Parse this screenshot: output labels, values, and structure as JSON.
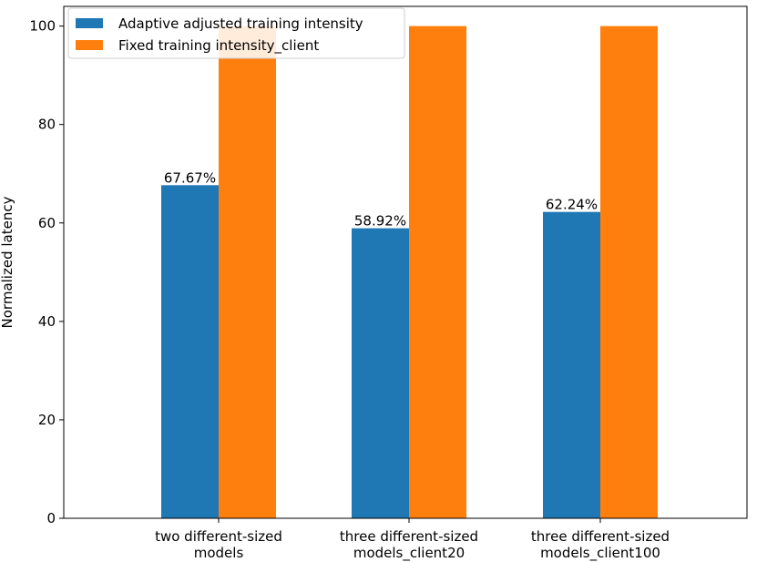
{
  "chart_data": {
    "type": "bar",
    "categories": [
      [
        "two different-sized",
        "models"
      ],
      [
        "three different-sized",
        "models_client20"
      ],
      [
        "three different-sized",
        "models_client100"
      ]
    ],
    "series": [
      {
        "name": "Adaptive adjusted training intensity",
        "values": [
          67.67,
          58.92,
          62.24
        ],
        "color": "#1f77b4"
      },
      {
        "name": "Fixed training intensity_client",
        "values": [
          100,
          100,
          100
        ],
        "color": "#ff7f0e"
      }
    ],
    "bar_labels": [
      "67.67%",
      "58.92%",
      "62.24%"
    ],
    "ylabel": "Normalized latency",
    "xlabel": "",
    "ylim": [
      0,
      104
    ],
    "yticks": [
      0,
      20,
      40,
      60,
      80,
      100
    ],
    "legend_position": "top-left",
    "grid": false
  }
}
